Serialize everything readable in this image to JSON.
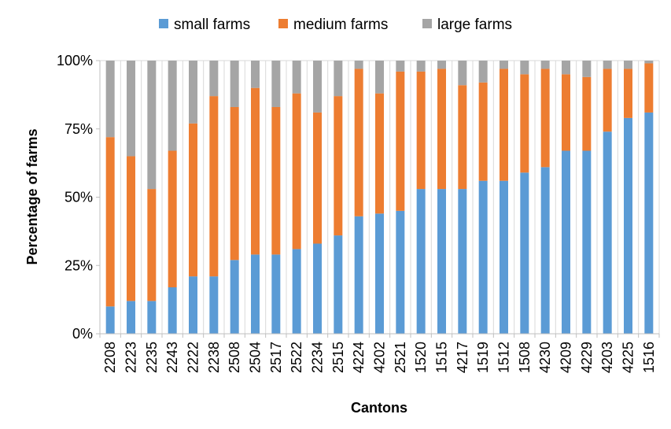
{
  "chart_data": {
    "type": "bar",
    "stacked": true,
    "xlabel": "Cantons",
    "ylabel": "Percentage of farms",
    "ylim": [
      0,
      100
    ],
    "yticks": [
      "0%",
      "25%",
      "50%",
      "75%",
      "100%"
    ],
    "grid": true,
    "legend_position": "top",
    "categories": [
      "2208",
      "2223",
      "2235",
      "2243",
      "2222",
      "2238",
      "2508",
      "2504",
      "2517",
      "2522",
      "2234",
      "2515",
      "4224",
      "4202",
      "2521",
      "1520",
      "1515",
      "4217",
      "1519",
      "1512",
      "1508",
      "4230",
      "4209",
      "4229",
      "4203",
      "4225",
      "1516"
    ],
    "series": [
      {
        "name": "small farms",
        "color": "#5b9bd5",
        "values": [
          10,
          12,
          12,
          17,
          21,
          21,
          27,
          29,
          29,
          31,
          33,
          36,
          43,
          44,
          45,
          53,
          53,
          53,
          56,
          56,
          59,
          61,
          67,
          67,
          74,
          79,
          81
        ]
      },
      {
        "name": "medium farms",
        "color": "#ed7d31",
        "values": [
          62,
          53,
          41,
          50,
          56,
          66,
          56,
          61,
          54,
          57,
          48,
          51,
          54,
          44,
          51,
          43,
          44,
          38,
          36,
          41,
          36,
          36,
          28,
          27,
          23,
          18,
          18
        ]
      },
      {
        "name": "large farms",
        "color": "#a5a5a5",
        "values": [
          28,
          35,
          47,
          33,
          23,
          13,
          17,
          10,
          17,
          12,
          19,
          13,
          3,
          12,
          4,
          4,
          3,
          9,
          8,
          3,
          5,
          3,
          5,
          6,
          3,
          3,
          1
        ]
      }
    ]
  }
}
